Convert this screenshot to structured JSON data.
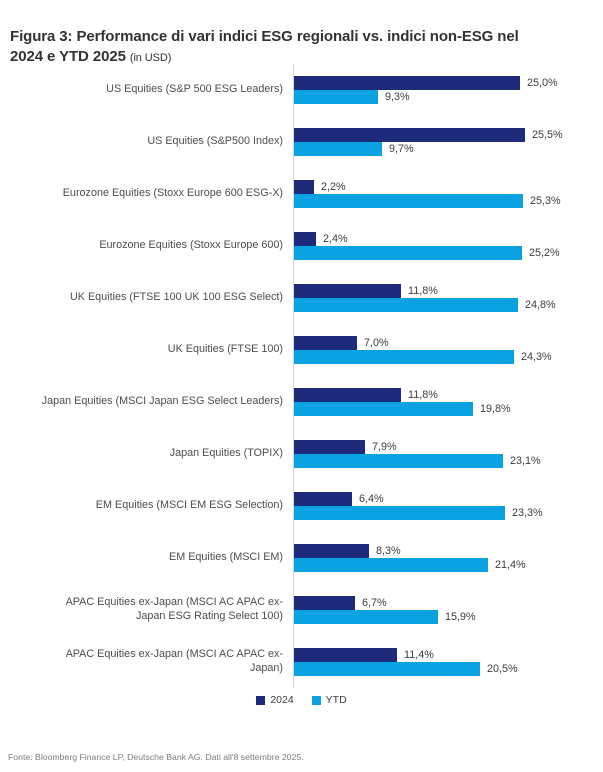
{
  "title": {
    "text": "Figura 3: Performance di vari indici ESG regionali vs. indici non-ESG nel\n2024 e YTD 2025 ",
    "unit": "(in USD)"
  },
  "colors": {
    "series_2024": "#1e2b7c",
    "series_ytd": "#0ba2e2",
    "axis_line": "#d9d9d9"
  },
  "chart_data": {
    "type": "bar",
    "orientation": "horizontal",
    "title": "Figura 3: Performance di vari indici ESG regionali vs. indici non-ESG nel 2024 e YTD 2025 (in USD)",
    "xlabel": "",
    "ylabel": "",
    "value_suffix": "%",
    "xlim": [
      0,
      28
    ],
    "grid": false,
    "legend_position": "bottom",
    "categories": [
      "US Equities (S&P 500 ESG Leaders)",
      "US Equities (S&P500 Index)",
      "Eurozone Equities (Stoxx Europe 600 ESG-X)",
      "Eurozone Equities (Stoxx Europe 600)",
      "UK Equities (FTSE 100 UK 100 ESG Select)",
      "UK Equities (FTSE 100)",
      "Japan Equities (MSCI Japan ESG Select Leaders)",
      "Japan Equities (TOPIX)",
      "EM Equities (MSCI EM ESG Selection)",
      "EM Equities (MSCI EM)",
      "APAC Equities ex-Japan (MSCI AC APAC ex-\nJapan ESG Rating Select 100)",
      "APAC Equities ex-Japan (MSCI AC APAC ex-\nJapan)"
    ],
    "series": [
      {
        "name": "2024",
        "color": "#1e2b7c",
        "values": [
          25.0,
          25.5,
          2.2,
          2.4,
          11.8,
          7.0,
          11.8,
          7.9,
          6.4,
          8.3,
          6.7,
          11.4
        ],
        "labels": [
          "25,0%",
          "25,5%",
          "2,2%",
          "2,4%",
          "11,8%",
          "7,0%",
          "11,8%",
          "7,9%",
          "6,4%",
          "8,3%",
          "6,7%",
          "11,4%"
        ]
      },
      {
        "name": "YTD",
        "color": "#0ba2e2",
        "values": [
          9.3,
          9.7,
          25.3,
          25.2,
          24.8,
          24.3,
          19.8,
          23.1,
          23.3,
          21.4,
          15.9,
          20.5
        ],
        "labels": [
          "9,3%",
          "9,7%",
          "25,3%",
          "25,2%",
          "24,8%",
          "24,3%",
          "19,8%",
          "23,1%",
          "23,3%",
          "21,4%",
          "15,9%",
          "20,5%"
        ]
      }
    ]
  },
  "footer": {
    "source": "Fonte: Bloomberg Finance LP, Deutsche Bank AG. Dati all'8 settembre 2025."
  }
}
